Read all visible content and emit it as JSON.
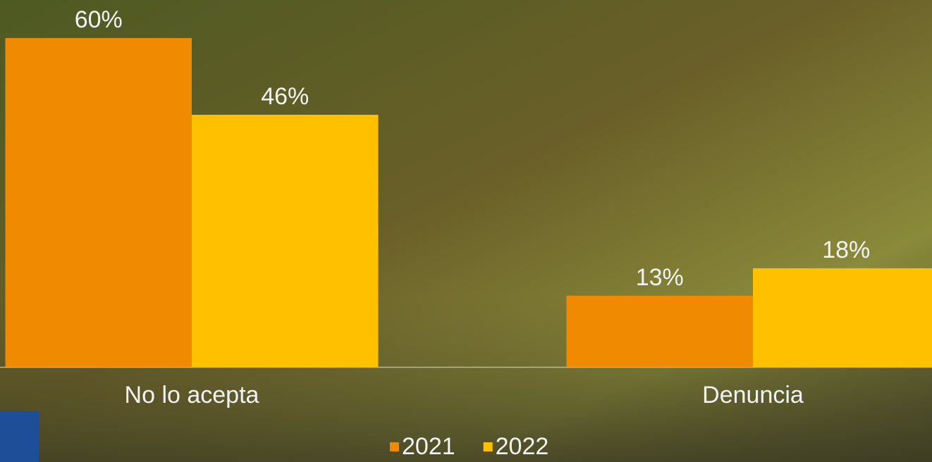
{
  "chart_data": {
    "type": "bar",
    "categories": [
      "No lo acepta",
      "Denuncia"
    ],
    "series": [
      {
        "name": "2021",
        "color": "#f08a00",
        "values": [
          60,
          13
        ],
        "value_labels": [
          "60%",
          "13%"
        ]
      },
      {
        "name": "2022",
        "color": "#ffc000",
        "values": [
          46,
          18
        ],
        "value_labels": [
          "46%",
          "18%"
        ]
      }
    ],
    "ylim": [
      0,
      60
    ],
    "legend": "bottom"
  }
}
